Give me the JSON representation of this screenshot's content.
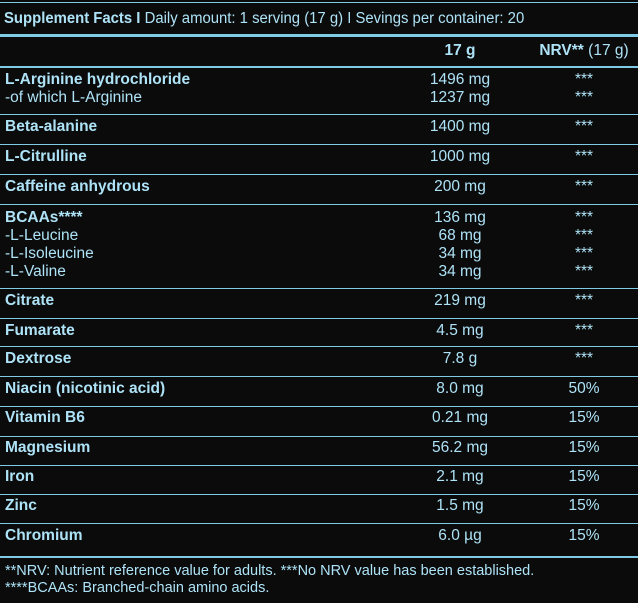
{
  "header": {
    "title": "Supplement Facts I",
    "subtitle": "Daily amount: 1 serving (17 g) I Sevings per container: 20"
  },
  "columns": {
    "amount": "17 g",
    "nrv_bold": "NRV**",
    "nrv_rest": "(17 g)"
  },
  "rows": [
    {
      "lines": [
        {
          "name": "L-Arginine hydrochloride",
          "bold": true,
          "amount": "1496 mg",
          "nrv": "***"
        },
        {
          "name": "-of which L-Arginine",
          "bold": false,
          "amount": "1237 mg",
          "nrv": "***"
        }
      ]
    },
    {
      "lines": [
        {
          "name": "Beta-alanine",
          "bold": true,
          "amount": "1400 mg",
          "nrv": "***"
        }
      ]
    },
    {
      "lines": [
        {
          "name": "L-Citrulline",
          "bold": true,
          "amount": "1000 mg",
          "nrv": "***"
        }
      ]
    },
    {
      "lines": [
        {
          "name": "Caffeine anhydrous",
          "bold": true,
          "amount": "200 mg",
          "nrv": "***"
        }
      ]
    },
    {
      "lines": [
        {
          "name": "BCAAs****",
          "bold": true,
          "amount": "136 mg",
          "nrv": "***"
        },
        {
          "name": "-L-Leucine",
          "bold": false,
          "amount": "68 mg",
          "nrv": "***"
        },
        {
          "name": "-L-Isoleucine",
          "bold": false,
          "amount": "34 mg",
          "nrv": "***"
        },
        {
          "name": "-L-Valine",
          "bold": false,
          "amount": "34 mg",
          "nrv": "***"
        }
      ]
    },
    {
      "lines": [
        {
          "name": "Citrate",
          "bold": true,
          "amount": "219 mg",
          "nrv": "***"
        }
      ]
    },
    {
      "lines": [
        {
          "name": "Fumarate",
          "bold": true,
          "amount": "4.5 mg",
          "nrv": "***"
        }
      ]
    },
    {
      "lines": [
        {
          "name": "Dextrose",
          "bold": true,
          "amount": "7.8 g",
          "nrv": "***"
        }
      ]
    },
    {
      "lines": [
        {
          "name": "Niacin (nicotinic acid)",
          "bold": true,
          "amount": "8.0 mg",
          "nrv": "50%"
        }
      ]
    },
    {
      "lines": [
        {
          "name": "Vitamin B6",
          "bold": true,
          "amount": "0.21 mg",
          "nrv": "15%"
        }
      ]
    },
    {
      "lines": [
        {
          "name": "Magnesium",
          "bold": true,
          "amount": "56.2 mg",
          "nrv": "15%"
        }
      ]
    },
    {
      "lines": [
        {
          "name": "Iron",
          "bold": true,
          "amount": "2.1 mg",
          "nrv": "15%"
        }
      ]
    },
    {
      "lines": [
        {
          "name": "Zinc",
          "bold": true,
          "amount": "1.5 mg",
          "nrv": "15%"
        }
      ]
    },
    {
      "lines": [
        {
          "name": "Chromium",
          "bold": true,
          "amount": "6.0 µg",
          "nrv": "15%"
        }
      ]
    }
  ],
  "footnotes": [
    "**NRV: Nutrient reference value for adults. ***No NRV value has been established.",
    "****BCAAs: Branched-chain amino acids."
  ],
  "colors": {
    "text": "#aee3f7",
    "rules": "#7fcbe6",
    "background": "#0b0b0b"
  }
}
